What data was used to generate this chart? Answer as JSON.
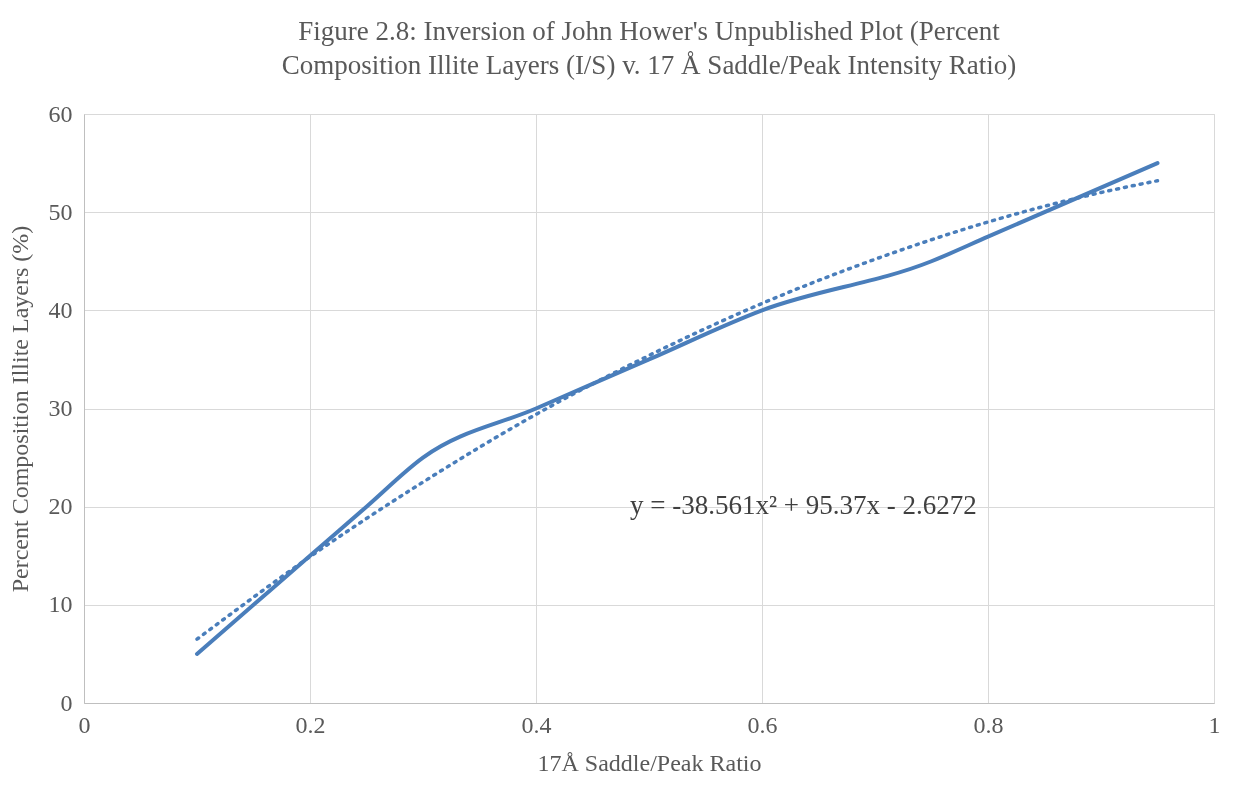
{
  "chart_data": {
    "type": "line",
    "title": "Figure 2.8: Inversion of John Hower's Unpublished Plot (Percent Composition Illite Layers (I/S) v. 17 Å Saddle/Peak Intensity Ratio)",
    "xlabel": "17Å Saddle/Peak Ratio",
    "ylabel": "Percent Composition Illite Layers (%)",
    "xlim": [
      0,
      1
    ],
    "xticks": [
      0,
      0.2,
      0.4,
      0.6,
      0.8,
      1
    ],
    "ylim": [
      0,
      60
    ],
    "yticks": [
      0,
      10,
      20,
      30,
      40,
      50,
      60
    ],
    "grid": true,
    "marker": "none",
    "series": [
      {
        "color": "#4a7ebb",
        "line_style": "solid",
        "x": [
          0.1,
          0.2,
          0.25,
          0.3,
          0.4,
          0.5,
          0.6,
          0.75,
          0.8,
          0.95
        ],
        "values": [
          5,
          15,
          20,
          25,
          30,
          35,
          40,
          45,
          47.5,
          55
        ]
      },
      {
        "color": "#4a7ebb",
        "line_style": "dotted",
        "x": [
          0.1,
          0.2,
          0.3,
          0.4,
          0.5,
          0.6,
          0.7,
          0.8,
          0.9,
          0.95
        ],
        "values": [
          6.5,
          14.9,
          22.5,
          29.4,
          35.4,
          40.7,
          45.2,
          49.0,
          52.0,
          53.2
        ]
      }
    ],
    "annotations": [
      "y = -38.561x² + 95.37x - 2.6272"
    ]
  }
}
